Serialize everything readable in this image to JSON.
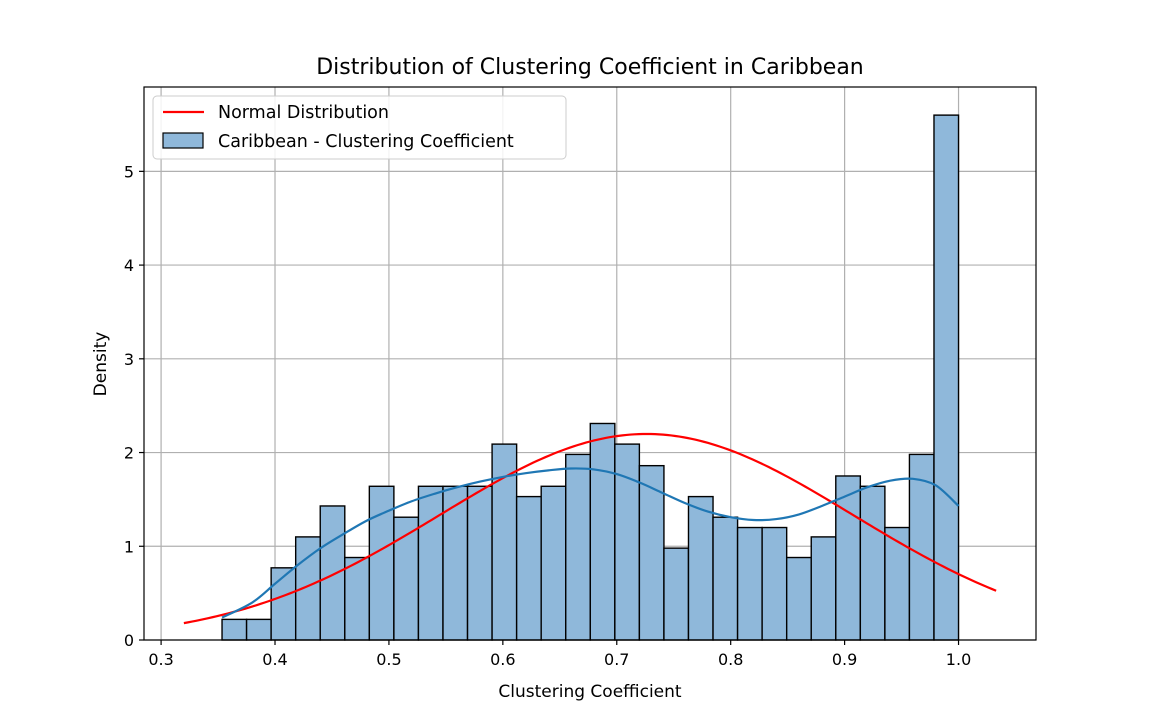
{
  "chart_data": {
    "type": "bar",
    "title": "Distribution of Clustering Coefficient in Caribbean",
    "xlabel": "Clustering Coefficient",
    "ylabel": "Density",
    "xlim": [
      0.285,
      1.068
    ],
    "ylim": [
      0,
      5.9
    ],
    "xticks": [
      0.3,
      0.4,
      0.5,
      0.6,
      0.7,
      0.8,
      0.9,
      1.0
    ],
    "xtick_labels": [
      "0.3",
      "0.4",
      "0.5",
      "0.6",
      "0.7",
      "0.8",
      "0.9",
      "1.0"
    ],
    "yticks": [
      0,
      1,
      2,
      3,
      4,
      5
    ],
    "ytick_labels": [
      "0",
      "1",
      "2",
      "3",
      "4",
      "5"
    ],
    "grid": true,
    "legend_position": "top-left",
    "histogram": {
      "name": "Caribbean - Clustering Coefficient",
      "color": "#8fb8da",
      "edge_color": "#000000",
      "bin_start": 0.3535,
      "bin_width": 0.02155,
      "values": [
        0.22,
        0.22,
        0.77,
        1.1,
        1.43,
        0.88,
        1.64,
        1.31,
        1.64,
        1.64,
        1.64,
        2.09,
        1.53,
        1.64,
        1.98,
        2.31,
        2.09,
        1.86,
        0.98,
        1.53,
        1.31,
        1.2,
        1.2,
        0.88,
        1.1,
        1.75,
        1.64,
        1.2,
        1.98,
        5.6
      ]
    },
    "kde": {
      "name": "KDE",
      "color": "#1f77b4",
      "x": [
        0.3535,
        0.38,
        0.4,
        0.42,
        0.44,
        0.46,
        0.48,
        0.5,
        0.52,
        0.54,
        0.56,
        0.58,
        0.6,
        0.62,
        0.64,
        0.66,
        0.68,
        0.7,
        0.72,
        0.74,
        0.76,
        0.78,
        0.8,
        0.82,
        0.84,
        0.86,
        0.88,
        0.9,
        0.92,
        0.94,
        0.96,
        0.98,
        1.0
      ],
      "y": [
        0.24,
        0.4,
        0.6,
        0.8,
        0.98,
        1.13,
        1.27,
        1.38,
        1.48,
        1.56,
        1.63,
        1.69,
        1.74,
        1.78,
        1.81,
        1.83,
        1.82,
        1.77,
        1.68,
        1.57,
        1.46,
        1.37,
        1.31,
        1.28,
        1.29,
        1.34,
        1.43,
        1.53,
        1.63,
        1.7,
        1.72,
        1.65,
        1.43
      ]
    },
    "normal": {
      "name": "Normal Distribution",
      "color": "#ff0000",
      "mean": 0.726,
      "std": 0.1815,
      "x_range": [
        0.32,
        1.033
      ]
    }
  }
}
